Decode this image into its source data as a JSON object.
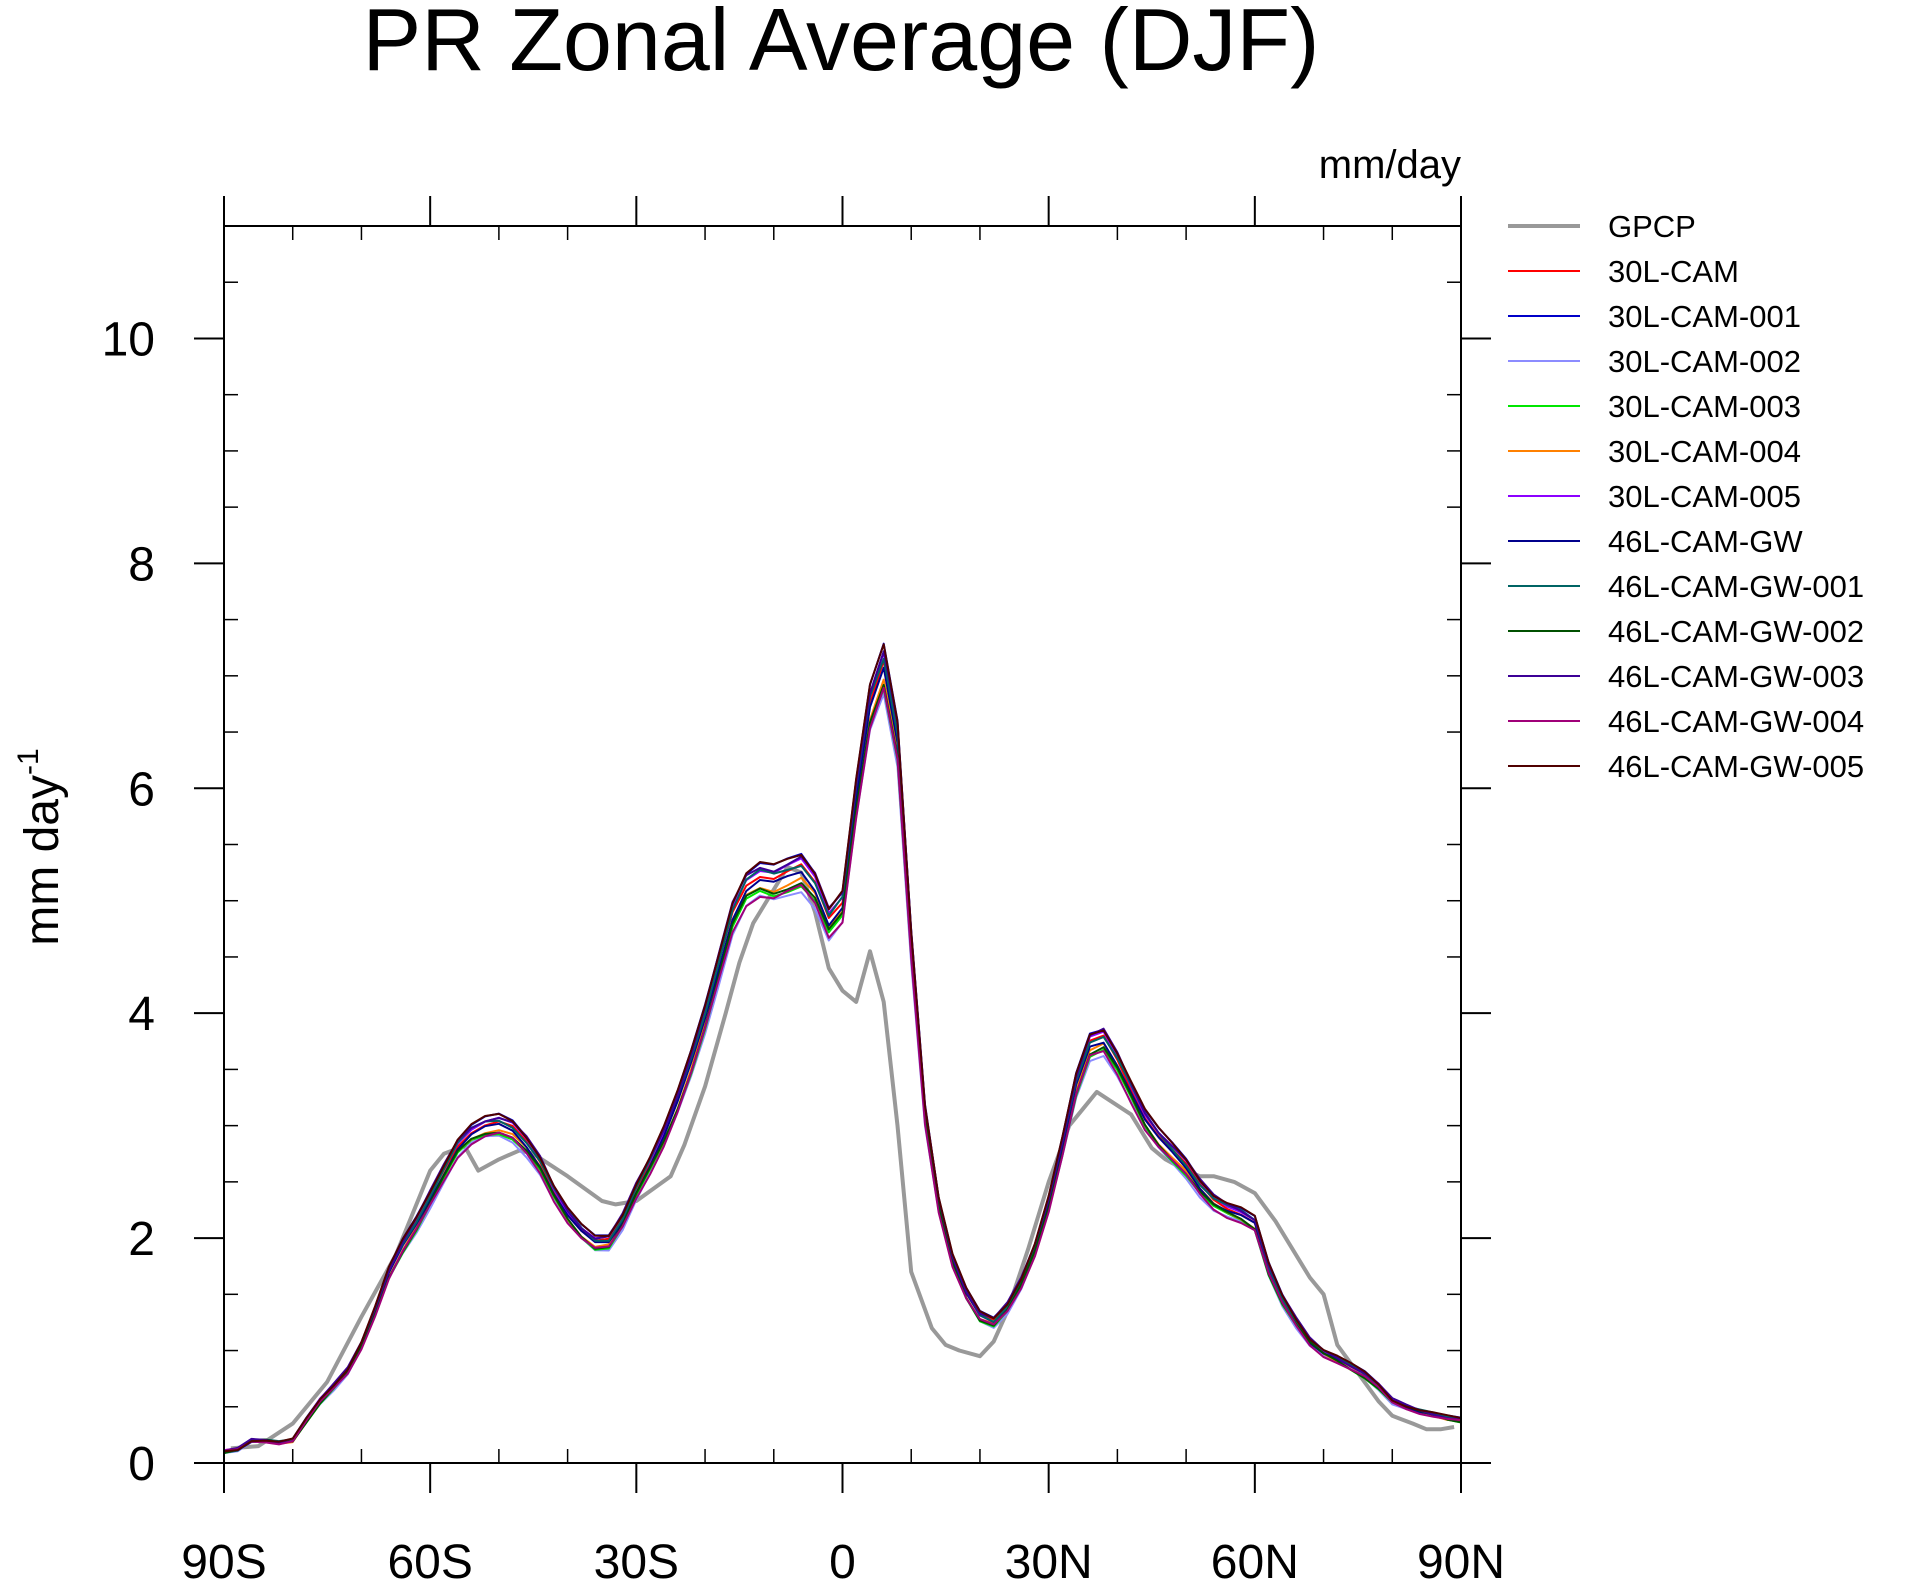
{
  "chart_data": {
    "type": "line",
    "title": "PR Zonal Average (DJF)",
    "units_label": "mm/day",
    "ylabel": "mm day",
    "ylabel_superscript": "-1",
    "xlabel": "",
    "xlim": [
      -90,
      90
    ],
    "ylim": [
      0,
      11
    ],
    "x_ticks": [
      {
        "value": -90,
        "label": "90S"
      },
      {
        "value": -60,
        "label": "60S"
      },
      {
        "value": -30,
        "label": "30S"
      },
      {
        "value": 0,
        "label": "0"
      },
      {
        "value": 30,
        "label": "30N"
      },
      {
        "value": 60,
        "label": "60N"
      },
      {
        "value": 90,
        "label": "90N"
      }
    ],
    "y_ticks": [
      {
        "value": 0,
        "label": "0"
      },
      {
        "value": 2,
        "label": "2"
      },
      {
        "value": 4,
        "label": "4"
      },
      {
        "value": 6,
        "label": "6"
      },
      {
        "value": 8,
        "label": "8"
      },
      {
        "value": 10,
        "label": "10"
      }
    ],
    "grid": false,
    "legend_position": "right",
    "gpcp_x": [
      -89,
      -85,
      -80,
      -75,
      -70,
      -65,
      -60,
      -58,
      -55,
      -53,
      -50,
      -47,
      -45,
      -40,
      -35,
      -33,
      -30,
      -25,
      -23,
      -20,
      -17,
      -15,
      -13,
      -10,
      -8,
      -6,
      -4,
      -2,
      0,
      2,
      4,
      6,
      8,
      10,
      13,
      15,
      17,
      20,
      22,
      24,
      27,
      30,
      33,
      35,
      37,
      39,
      42,
      45,
      47,
      50,
      52,
      54,
      57,
      60,
      63,
      65,
      68,
      70,
      72,
      75,
      78,
      80,
      83,
      85,
      87,
      89
    ],
    "gpcp_y": [
      0.13,
      0.15,
      0.35,
      0.72,
      1.3,
      1.85,
      2.6,
      2.75,
      2.82,
      2.6,
      2.7,
      2.78,
      2.75,
      2.55,
      2.33,
      2.3,
      2.33,
      2.55,
      2.83,
      3.35,
      4.0,
      4.45,
      4.8,
      5.1,
      5.3,
      5.25,
      4.9,
      4.4,
      4.2,
      4.1,
      4.55,
      4.1,
      3.0,
      1.7,
      1.2,
      1.05,
      1.0,
      0.95,
      1.08,
      1.35,
      1.9,
      2.5,
      3.0,
      3.15,
      3.3,
      3.22,
      3.1,
      2.8,
      2.7,
      2.6,
      2.55,
      2.55,
      2.5,
      2.4,
      2.15,
      1.95,
      1.65,
      1.5,
      1.05,
      0.8,
      0.55,
      0.42,
      0.35,
      0.3,
      0.3,
      0.32
    ],
    "model_x": [
      -90,
      -88,
      -86,
      -84,
      -82,
      -80,
      -78,
      -76,
      -74,
      -72,
      -70,
      -68,
      -66,
      -64,
      -62,
      -60,
      -58,
      -56,
      -54,
      -52,
      -50,
      -48,
      -46,
      -44,
      -42,
      -40,
      -38,
      -36,
      -34,
      -32,
      -30,
      -28,
      -26,
      -24,
      -22,
      -20,
      -18,
      -16,
      -14,
      -12,
      -10,
      -8,
      -6,
      -4,
      -2,
      0,
      2,
      4,
      6,
      8,
      10,
      12,
      14,
      16,
      18,
      20,
      22,
      24,
      26,
      28,
      30,
      32,
      34,
      36,
      38,
      40,
      42,
      44,
      46,
      48,
      50,
      52,
      54,
      56,
      58,
      60,
      62,
      64,
      66,
      68,
      70,
      72,
      74,
      76,
      78,
      80,
      82,
      84,
      86,
      88,
      90
    ],
    "series": [
      {
        "name": "GPCP",
        "color": "#999999",
        "width": 4,
        "offset": 0
      },
      {
        "name": "30L-CAM",
        "color": "#ff0000",
        "width": 2,
        "offset": 0.01
      },
      {
        "name": "30L-CAM-001",
        "color": "#0000c8",
        "width": 2,
        "offset": 0.03
      },
      {
        "name": "30L-CAM-002",
        "color": "#8c8cff",
        "width": 2,
        "offset": -0.03
      },
      {
        "name": "30L-CAM-003",
        "color": "#00e600",
        "width": 2,
        "offset": -0.02
      },
      {
        "name": "30L-CAM-004",
        "color": "#ff8000",
        "width": 2,
        "offset": -0.01
      },
      {
        "name": "30L-CAM-005",
        "color": "#8c00ff",
        "width": 2,
        "offset": 0.02
      },
      {
        "name": "46L-CAM-GW",
        "color": "#00008c",
        "width": 2,
        "offset": 0.0
      },
      {
        "name": "46L-CAM-GW-001",
        "color": "#006464",
        "width": 2,
        "offset": 0.015
      },
      {
        "name": "46L-CAM-GW-002",
        "color": "#005000",
        "width": 2,
        "offset": -0.015
      },
      {
        "name": "46L-CAM-GW-003",
        "color": "#3c0096",
        "width": 2,
        "offset": 0.025
      },
      {
        "name": "46L-CAM-GW-004",
        "color": "#a00078",
        "width": 2,
        "offset": -0.025
      },
      {
        "name": "46L-CAM-GW-005",
        "color": "#500000",
        "width": 2,
        "offset": 0.03
      }
    ],
    "model_mean_y": [
      0.1,
      0.12,
      0.2,
      0.2,
      0.18,
      0.2,
      0.38,
      0.55,
      0.68,
      0.82,
      1.05,
      1.35,
      1.68,
      1.92,
      2.12,
      2.35,
      2.58,
      2.8,
      2.92,
      2.98,
      3.0,
      2.95,
      2.82,
      2.65,
      2.4,
      2.2,
      2.05,
      1.95,
      1.96,
      2.15,
      2.42,
      2.65,
      2.9,
      3.2,
      3.55,
      3.95,
      4.4,
      4.85,
      5.1,
      5.18,
      5.15,
      5.2,
      5.25,
      5.1,
      4.8,
      4.95,
      5.9,
      6.7,
      7.05,
      6.4,
      4.6,
      3.1,
      2.3,
      1.8,
      1.5,
      1.3,
      1.25,
      1.38,
      1.6,
      1.9,
      2.3,
      2.8,
      3.35,
      3.7,
      3.75,
      3.55,
      3.3,
      3.05,
      2.88,
      2.75,
      2.62,
      2.45,
      2.32,
      2.25,
      2.2,
      2.12,
      1.72,
      1.45,
      1.25,
      1.08,
      0.98,
      0.92,
      0.85,
      0.78,
      0.68,
      0.55,
      0.5,
      0.46,
      0.43,
      0.4,
      0.38
    ]
  }
}
